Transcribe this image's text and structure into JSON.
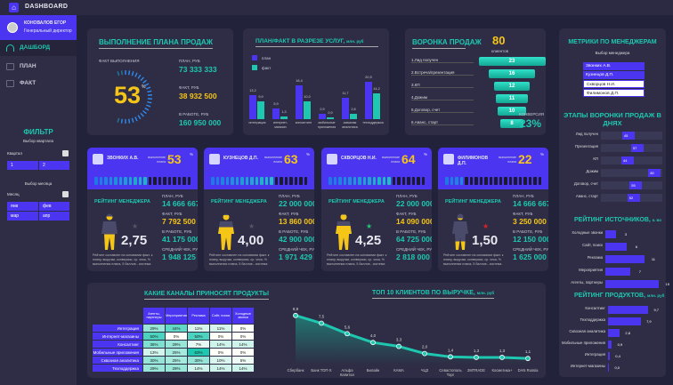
{
  "app": {
    "title": "DASHBOARD"
  },
  "user": {
    "name": "КОНОВАЛОВ ЕГОР",
    "role": "Генеральный директор"
  },
  "nav": [
    {
      "label": "ДАШБОРД"
    },
    {
      "label": "ПЛАН"
    },
    {
      "label": "ФАКТ"
    }
  ],
  "filter": {
    "title": "ФИЛЬТР",
    "quarter_caption": "Выбор квартала",
    "quarter_label": "Квартал",
    "quarters": [
      "1",
      "2"
    ],
    "month_caption": "Выбор месяца",
    "month_label": "Месяц",
    "months": [
      "янв",
      "фев",
      "мар",
      "апр"
    ]
  },
  "plan": {
    "title": "ВЫПОЛНЕНИЕ ПЛАНА ПРОДАЖ",
    "fact_caption": "ФАКТ ВЫПОЛНЕНИЯ",
    "percent": "53",
    "percent_sign": "%",
    "percent_value": 53,
    "plan_label": "ПЛАН, РУБ",
    "plan_value": "73 333 333",
    "fact_label": "ФАКТ, РУБ",
    "fact_value": "38 932 500",
    "work_label": "В РАБОТЕ, РУБ",
    "work_value": "160 950 000"
  },
  "services": {
    "title": "ПЛАН/ФАКТ В РАЗРЕЗЕ УСЛУГ,",
    "unit": "млн. руб",
    "legend": [
      "план",
      "факт"
    ],
    "chart_data": {
      "type": "bar",
      "categories": [
        "интеграция",
        "интернет-магазин",
        "консалтинг",
        "мобильные приложения",
        "сквозная аналитика",
        "техподдержка"
      ],
      "series": [
        {
          "name": "план",
          "values": [
            13.2,
            5.9,
            18.4,
            2.9,
            11.7,
            20.5
          ]
        },
        {
          "name": "факт",
          "values": [
            9.9,
            1.3,
            10.0,
            0.9,
            2.8,
            14.2
          ]
        }
      ],
      "labels_plan": [
        "13,2",
        "5,9",
        "18,4",
        "2,9",
        "11,7",
        "20,5"
      ],
      "labels_fact": [
        "9,9",
        "1,3",
        "10,0",
        "0,9",
        "2,8",
        "14,2"
      ]
    }
  },
  "funnel": {
    "title": "ВОРОНКА ПРОДАЖ",
    "total": "80",
    "total_label": "клиентов",
    "conv_label": "КОНВЕРСИЯ",
    "conv_value": "23%",
    "stages": [
      {
        "label": "1.Лид получен",
        "value": "23",
        "n": 23
      },
      {
        "label": "2.Встреча/презентация",
        "value": "16",
        "n": 16
      },
      {
        "label": "3.КП",
        "value": "12",
        "n": 12
      },
      {
        "label": "4.Дожим",
        "value": "11",
        "n": 11
      },
      {
        "label": "5.Договор, счет",
        "value": "10",
        "n": 10
      },
      {
        "label": "6.Аванс, старт",
        "value": "8",
        "n": 8
      }
    ]
  },
  "managers_filter": {
    "title": "МЕТРИКИ ПО МЕНЕДЖЕРАМ",
    "caption": "Выбор менеджера",
    "items": [
      {
        "label": "Звонких А.В.",
        "selected": true
      },
      {
        "label": "Кузнецов Д.П.",
        "selected": true
      },
      {
        "label": "Скворцов Н.И.",
        "selected": false
      },
      {
        "label": "Филимонов Д.П.",
        "selected": false
      }
    ]
  },
  "stages_days": {
    "title": "ЭТАПЫ ВОРОНКИ ПРОДАЖ В ДНЯХ",
    "items": [
      {
        "label": "Лид получен",
        "value": "45",
        "n": 45
      },
      {
        "label": "Презентация",
        "value": "57",
        "n": 57
      },
      {
        "label": "КП",
        "value": "44",
        "n": 44
      },
      {
        "label": "Дожим",
        "value": "80",
        "n": 80
      },
      {
        "label": "Договор, счет",
        "value": "55",
        "n": 55
      },
      {
        "label": "Аванс, старт",
        "value": "52",
        "n": 52
      }
    ]
  },
  "sources": {
    "title": "РЕЙТИНГ ИСТОЧНИКОВ,",
    "unit": "к. во",
    "items": [
      {
        "label": "Холодные звонки",
        "value": "3",
        "n": 3
      },
      {
        "label": "Сайт, поиск",
        "value": "6",
        "n": 6
      },
      {
        "label": "Реклама",
        "value": "11",
        "n": 11
      },
      {
        "label": "Мероприятия",
        "value": "7",
        "n": 7
      },
      {
        "label": "Агенты, партнеры",
        "value": "15",
        "n": 15
      }
    ]
  },
  "products": {
    "title": "РЕЙТИНГ ПРОДУКТОВ,",
    "unit": "млн. руб",
    "items": [
      {
        "label": "Консалтинг",
        "value": "9,7",
        "n": 9.7
      },
      {
        "label": "Техподдержка",
        "value": "7,9",
        "n": 7.9
      },
      {
        "label": "Сквозная аналитика",
        "value": "2,8",
        "n": 2.8
      },
      {
        "label": "Мобильные приложения",
        "value": "0,9",
        "n": 0.9
      },
      {
        "label": "Интеграция",
        "value": "0,4",
        "n": 0.4
      },
      {
        "label": "Интернет-магазины",
        "value": "0,0",
        "n": 0
      }
    ]
  },
  "card_common": {
    "plan_caption": "выполнение плана",
    "rating_title": "РЕЙТИНГ МЕНЕДЖЕРА",
    "plan_label": "ПЛАН, РУБ",
    "fact_label": "ФАКТ, РУБ",
    "work_label": "В РАБОТЕ, РУБ",
    "avg_label": "СРЕДНИЙ ЧЕК, РУБ",
    "note": "Рейтинг составлен на основании факт. к плану, выручки, конверсии, ср. чека, % выполнения плана, 5 баллов - система",
    "percent_sign": "%"
  },
  "cards": [
    {
      "name": "ЗВОНКИХ А.В.",
      "percent": "53",
      "p": 53,
      "rating": "2,75",
      "r": 2.75,
      "star": "#555566",
      "plan": "14 666 667",
      "fact": "7 792 500",
      "work": "41 175 000",
      "avg": "1 948 125"
    },
    {
      "name": "КУЗНЕЦОВ Д.П.",
      "percent": "63",
      "p": 63,
      "rating": "4,00",
      "r": 4.0,
      "star": "#555566",
      "plan": "22 000 000",
      "fact": "13 860 000",
      "work": "42 900 000",
      "avg": "1 971 429"
    },
    {
      "name": "СКВОРЦОВ Н.И.",
      "percent": "64",
      "p": 64,
      "rating": "4,25",
      "r": 4.25,
      "star": "#1ec870",
      "plan": "22 000 000",
      "fact": "14 090 000",
      "work": "64 725 000",
      "avg": "2 818 000"
    },
    {
      "name": "ФИЛИМОНОВ Д.П.",
      "percent": "22",
      "p": 22,
      "rating": "1,50",
      "r": 1.5,
      "star": "#e02020",
      "plan": "14 666 667",
      "fact": "3 250 000",
      "work": "12 150 000",
      "avg": "1 625 000"
    }
  ],
  "channels": {
    "title": "КАКИЕ КАНАЛЫ ПРИНОСЯТ ПРОДУКТЫ",
    "columns": [
      "Агенты, партнеры",
      "Мероприятия",
      "Реклама",
      "Сайт, поиск",
      "Холодные звонки"
    ],
    "rows": [
      {
        "label": "Интеграция",
        "cells": [
          "29%",
          "44%",
          "11%",
          "11%",
          "0%"
        ]
      },
      {
        "label": "Интернет-магазины",
        "cells": [
          "50%",
          "0%",
          "50%",
          "0%",
          "0%"
        ]
      },
      {
        "label": "Консалтинг",
        "cells": [
          "36%",
          "29%",
          "7%",
          "14%",
          "14%"
        ]
      },
      {
        "label": "Мобильные приложения",
        "cells": [
          "13%",
          "25%",
          "63%",
          "0%",
          "0%"
        ]
      },
      {
        "label": "Сквозная аналитика",
        "cells": [
          "30%",
          "25%",
          "30%",
          "10%",
          "5%"
        ]
      },
      {
        "label": "Техподдержка",
        "cells": [
          "29%",
          "29%",
          "14%",
          "14%",
          "14%"
        ]
      }
    ]
  },
  "clients": {
    "title": "ТОП 10 КЛИЕНТОВ ПО ВЫРУЧКЕ,",
    "unit": "млн. руб",
    "chart_data": {
      "type": "area",
      "categories": [
        "Сбербанк",
        "Банк ТОП-Х",
        "Альфа Капитал",
        "Билайн",
        "КАМА",
        "ЧЦЗ",
        "Севастополь Торг",
        "2МTRADE",
        "Косметика+",
        "DAN Russia"
      ],
      "values": [
        8.9,
        7.5,
        5.6,
        4.0,
        3.3,
        2.0,
        1.4,
        1.3,
        1.3,
        1.1
      ],
      "labels": [
        "8,9",
        "7,5",
        "5,6",
        "4,0",
        "3,3",
        "2,0",
        "1,4",
        "1,3",
        "1,3",
        "1,1"
      ],
      "ylim": [
        0,
        10
      ]
    }
  }
}
